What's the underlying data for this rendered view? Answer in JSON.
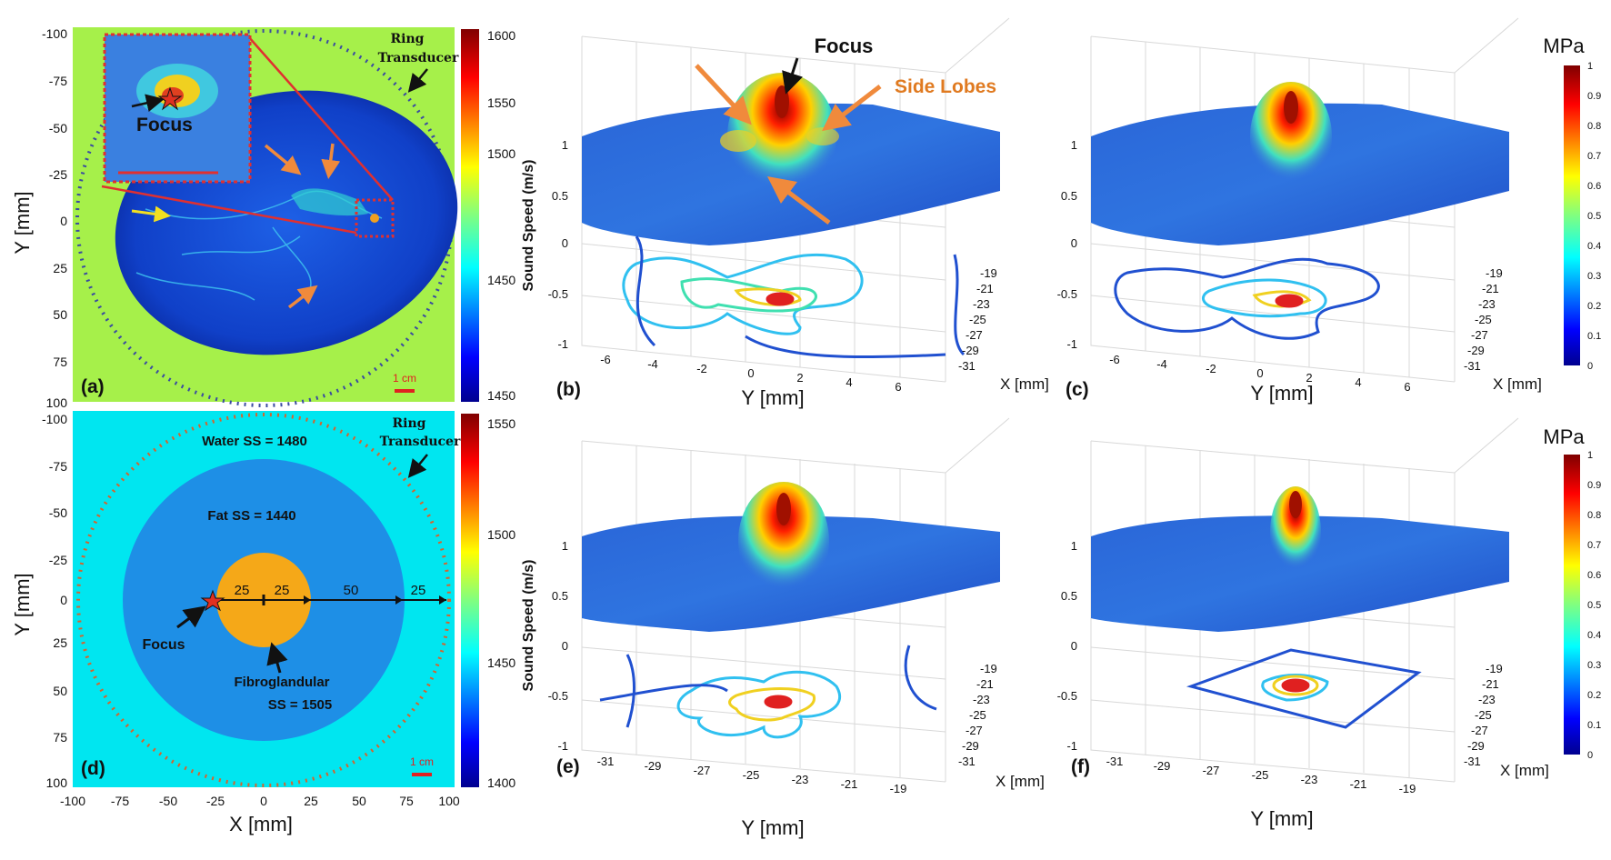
{
  "panels": {
    "a": {
      "label": "(a)",
      "ylabel": "Y [mm]",
      "yticks": [
        "-100",
        "-75",
        "-50",
        "-25",
        "0",
        "25",
        "50",
        "75",
        "100"
      ],
      "annotations": {
        "ring1": "Ring",
        "ring2": "Transducer",
        "focus": "Focus",
        "scale": "1 cm"
      },
      "colorbar_ticks": [
        "1600",
        "1550",
        "1500",
        "1450",
        "1450"
      ]
    },
    "d": {
      "label": "(d)",
      "xlabel": "X [mm]",
      "ylabel": "Y [mm]",
      "xticks": [
        "-100",
        "-75",
        "-50",
        "-25",
        "0",
        "25",
        "50",
        "75",
        "100"
      ],
      "yticks": [
        "-100",
        "-75",
        "-50",
        "-25",
        "0",
        "25",
        "50",
        "75",
        "100"
      ],
      "annotations": {
        "ring1": "Ring",
        "ring2": "Transducer",
        "water": "Water SS = 1480",
        "fat": "Fat SS = 1440",
        "fibro1": "Fibroglandular",
        "fibro2": "SS = 1505",
        "focus": "Focus",
        "scale": "1 cm",
        "dim1": "25",
        "dim2": "25",
        "dim3": "50",
        "dim4": "25"
      },
      "colorbar_ticks": [
        "1550",
        "1500",
        "1450",
        "1400"
      ]
    },
    "b": {
      "label": "(b)",
      "zlabel": "Sound Speed (m/s)",
      "ylabel": "Y [mm]",
      "xlabel": "X [mm]",
      "zticks": [
        "1",
        "0.5",
        "0",
        "-0.5",
        "-1"
      ],
      "yticks": [
        "-6",
        "-4",
        "-2",
        "0",
        "2",
        "4",
        "6"
      ],
      "xticks": [
        "-19",
        "-21",
        "-23",
        "-25",
        "-27",
        "-29",
        "-31"
      ],
      "annotations": {
        "focus": "Focus",
        "side_lobes": "Side Lobes"
      }
    },
    "c": {
      "label": "(c)",
      "ylabel": "Y [mm]",
      "xlabel": "X [mm]",
      "zticks": [
        "1",
        "0.5",
        "0",
        "-0.5",
        "-1"
      ],
      "yticks": [
        "-6",
        "-4",
        "-2",
        "0",
        "2",
        "4",
        "6"
      ],
      "xticks": [
        "-19",
        "-21",
        "-23",
        "-25",
        "-27",
        "-29",
        "-31"
      ]
    },
    "e": {
      "label": "(e)",
      "zlabel": "Sound Speed (m/s)",
      "ylabel": "Y [mm]",
      "xlabel": "X [mm]",
      "zticks": [
        "1",
        "0.5",
        "0",
        "-0.5",
        "-1"
      ],
      "yticks": [
        "-31",
        "-29",
        "-27",
        "-25",
        "-23",
        "-21",
        "-19"
      ],
      "xticks": [
        "-19",
        "-21",
        "-23",
        "-25",
        "-27",
        "-29",
        "-31"
      ]
    },
    "f": {
      "label": "(f)",
      "ylabel": "Y [mm]",
      "xlabel": "X [mm]",
      "zticks": [
        "1",
        "0.5",
        "0",
        "-0.5",
        "-1"
      ],
      "yticks": [
        "-31",
        "-29",
        "-27",
        "-25",
        "-23",
        "-21",
        "-19"
      ],
      "xticks": [
        "-19",
        "-21",
        "-23",
        "-25",
        "-27",
        "-29",
        "-31"
      ]
    }
  },
  "colorbar_mpa": {
    "title": "MPa",
    "ticks": [
      "1",
      "0.9",
      "0.8",
      "0.7",
      "0.6",
      "0.5",
      "0.4",
      "0.3",
      "0.2",
      "0.1",
      "0"
    ]
  },
  "colors": {
    "jet": [
      "#00008f",
      "#0000ff",
      "#0080ff",
      "#00ffff",
      "#80ff80",
      "#ffff00",
      "#ff8000",
      "#ff0000",
      "#800000"
    ],
    "water_green": "#a6f04a",
    "ring_dots_a": "#3b4ba0",
    "ring_dots_d": "#d2652f",
    "water_cyan": "#00e6f0",
    "fat_blue": "#1e8fe6",
    "fibro_orange": "#f5a818",
    "arrow_orange": "#f08a3c",
    "annot_orange": "#e07a20"
  }
}
